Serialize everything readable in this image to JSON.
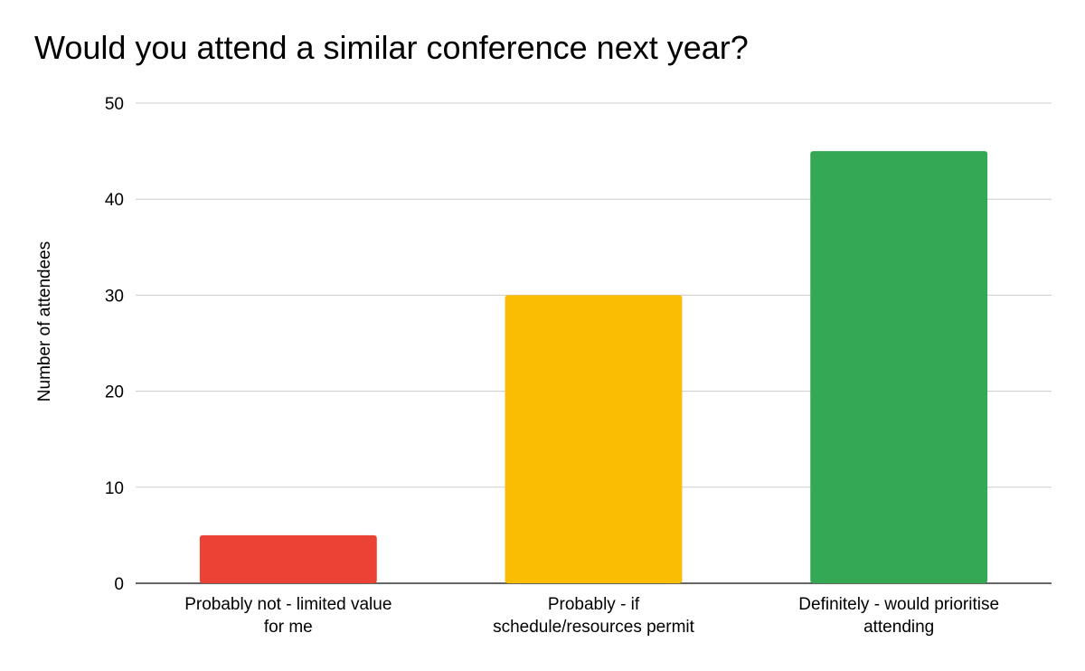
{
  "chart_data": {
    "type": "bar",
    "title": "Would you attend a similar conference next year?",
    "xlabel": "",
    "ylabel": "Number of attendees",
    "ylim": [
      0,
      50
    ],
    "yticks": [
      "0",
      "10",
      "20",
      "30",
      "40",
      "50"
    ],
    "grid": true,
    "legend": "none",
    "categories": [
      [
        "Probably not - limited value",
        "for me"
      ],
      [
        "Probably - if",
        "schedule/resources permit"
      ],
      [
        "Definitely - would prioritise",
        "attending"
      ]
    ],
    "values": [
      5,
      30,
      45
    ],
    "colors": [
      "#ea4335",
      "#fbbc04",
      "#34a853"
    ]
  }
}
